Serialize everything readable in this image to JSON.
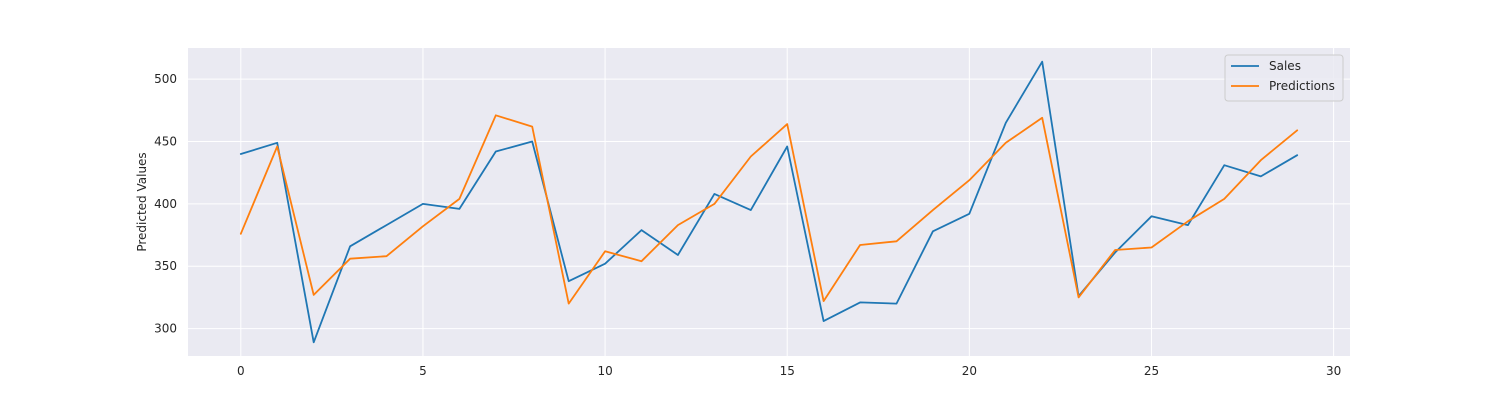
{
  "chart_data": {
    "type": "line",
    "title": "",
    "xlabel": "",
    "ylabel": "Predicted Values",
    "xlim": [
      -1.45,
      30.45
    ],
    "ylim": [
      278,
      525
    ],
    "x_ticks": [
      0,
      5,
      10,
      15,
      20,
      25,
      30
    ],
    "y_ticks": [
      300,
      350,
      400,
      450,
      500
    ],
    "grid": true,
    "legend_position": "top-right",
    "x": [
      0,
      1,
      2,
      3,
      4,
      5,
      6,
      7,
      8,
      9,
      10,
      11,
      12,
      13,
      14,
      15,
      16,
      17,
      18,
      19,
      20,
      21,
      22,
      23,
      24,
      25,
      26,
      27,
      28,
      29
    ],
    "series": [
      {
        "name": "Sales",
        "color": "#1f77b4",
        "values": [
          440,
          449,
          289,
          366,
          383,
          400,
          396,
          442,
          450,
          338,
          352,
          379,
          359,
          408,
          395,
          446,
          306,
          321,
          320,
          378,
          392,
          465,
          514,
          326,
          361,
          390,
          383,
          431,
          422,
          439
        ]
      },
      {
        "name": "Predictions",
        "color": "#ff7f0e",
        "values": [
          376,
          446,
          327,
          356,
          358,
          382,
          404,
          471,
          462,
          320,
          362,
          354,
          383,
          400,
          438,
          464,
          322,
          367,
          370,
          395,
          419,
          449,
          469,
          325,
          363,
          365,
          386,
          404,
          435,
          459
        ]
      }
    ]
  }
}
